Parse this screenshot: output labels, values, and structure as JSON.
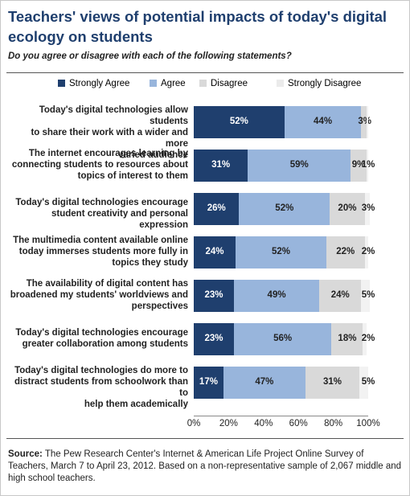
{
  "title": "Teachers' views of potential impacts of today's digital ecology on students",
  "subtitle": "Do you agree or disagree with each of the following statements?",
  "source": {
    "label": "Source:",
    "text": " The Pew Research Center's Internet & American Life Project Online Survey of Teachers, March 7 to April 23, 2012.  Based on a non-representative sample of 2,067 middle and high school teachers."
  },
  "colors": {
    "strongly_agree": "#1f3f6e",
    "agree": "#98b5dc",
    "disagree": "#d9d9d9",
    "strongly_disagree": "#f2f2f2"
  },
  "chart_data": {
    "type": "bar",
    "orientation": "horizontal",
    "stacked": true,
    "xlim": [
      0,
      100
    ],
    "xticks": [
      "0%",
      "20%",
      "40%",
      "60%",
      "80%",
      "100%"
    ],
    "legend_placement": "top",
    "series_names": [
      "Strongly Agree",
      "Agree",
      "Disagree",
      "Strongly Disagree"
    ],
    "categories": [
      "Today's digital technologies allow students to share their work with a wider and more varied audience",
      "The internet encourages learning by connecting students to resources about topics of interest to them",
      "Today's digital technologies encourage student creativity and personal expression",
      "The multimedia content available online today immerses students more fully in topics they study",
      "The availability of digital content has broadened my students' worldviews and perspectives",
      "Today's digital technologies encourage greater collaboration among students",
      "Today's digital technologies do more to distract students from schoolwork than to help them academically"
    ],
    "label_lines": [
      [
        "Today's digital technologies allow students",
        "to share their work with a wider and more",
        "varied audience"
      ],
      [
        "The internet encourages learning by",
        "connecting students to resources about",
        "topics of interest to them"
      ],
      [
        "Today's digital technologies encourage",
        "student creativity and personal expression"
      ],
      [
        "The multimedia content available online",
        "today immerses students more fully in",
        "topics they study"
      ],
      [
        "The availability of digital content has",
        "broadened my students' worldviews and",
        "perspectives"
      ],
      [
        "Today's digital technologies encourage",
        "greater collaboration among students"
      ],
      [
        "Today's digital technologies do more to",
        "distract students from schoolwork than to",
        "help them academically"
      ]
    ],
    "series": [
      {
        "name": "Strongly Agree",
        "values": [
          52,
          31,
          26,
          24,
          23,
          23,
          17
        ]
      },
      {
        "name": "Agree",
        "values": [
          44,
          59,
          52,
          52,
          49,
          56,
          47
        ]
      },
      {
        "name": "Disagree",
        "values": [
          3,
          9,
          20,
          22,
          24,
          18,
          31
        ]
      },
      {
        "name": "Strongly Disagree",
        "values": [
          1,
          1,
          3,
          2,
          5,
          2,
          5
        ]
      }
    ],
    "data_labels": [
      [
        "52%",
        "44%",
        "3%",
        ""
      ],
      [
        "31%",
        "59%",
        "9%",
        "1%"
      ],
      [
        "26%",
        "52%",
        "20%",
        "3%"
      ],
      [
        "24%",
        "52%",
        "22%",
        "2%"
      ],
      [
        "23%",
        "49%",
        "24%",
        "5%"
      ],
      [
        "23%",
        "56%",
        "18%",
        "2%"
      ],
      [
        "17%",
        "47%",
        "31%",
        "5%"
      ]
    ]
  }
}
